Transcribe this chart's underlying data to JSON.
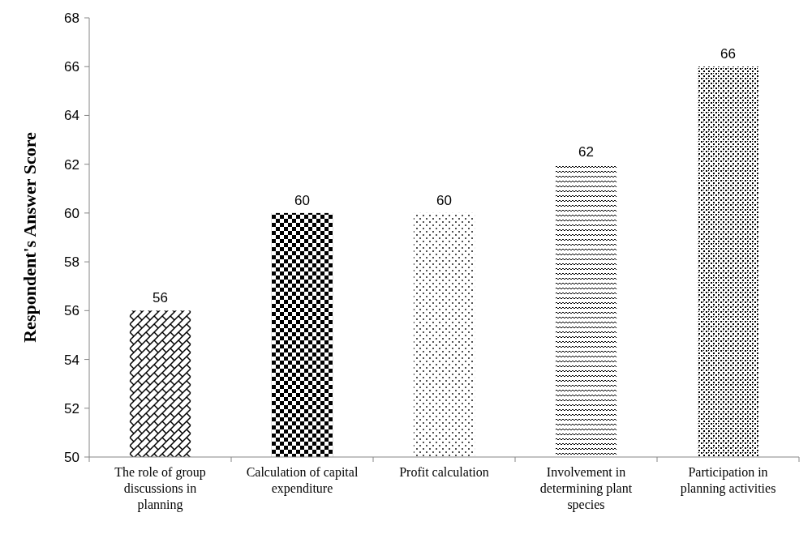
{
  "chart_data": {
    "type": "bar",
    "ylabel": "Respondent's Answer Score",
    "categories": [
      "The role of group discussions in planning",
      "Calculation of capital expenditure",
      "Profit calculation",
      "Involvement in determining plant species",
      "Participation in planning activities"
    ],
    "values": [
      56,
      60,
      60,
      62,
      66
    ],
    "color": "#000000",
    "ylim": [
      50,
      68
    ],
    "yticks": [
      50,
      52,
      54,
      56,
      58,
      60,
      62,
      64,
      66,
      68
    ],
    "grid": false,
    "data_labels": true
  }
}
